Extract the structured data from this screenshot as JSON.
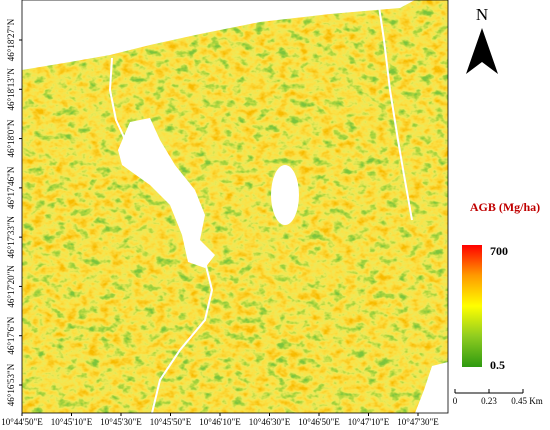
{
  "north": "N",
  "legend": {
    "title": "AGB (Mg/ha)",
    "max": 700,
    "min": 0.5
  },
  "scale_bar": {
    "labels": [
      "0",
      "0.23",
      "0.45 Km"
    ]
  },
  "x_labels": [
    "10°44'50\"E",
    "10°45'10\"E",
    "10°45'30\"E",
    "10°45'50\"E",
    "10°46'10\"E",
    "10°46'30\"E",
    "10°46'50\"E",
    "10°47'10\"E",
    "10°47'30\"E"
  ],
  "y_labels": [
    "46°18'27\"N",
    "46°18'13\"N",
    "46°18'0\"N",
    "46°17'46\"N",
    "46°17'33\"N",
    "46°17'20\"N",
    "46°17'6\"N",
    "46°16'53\"N"
  ]
}
